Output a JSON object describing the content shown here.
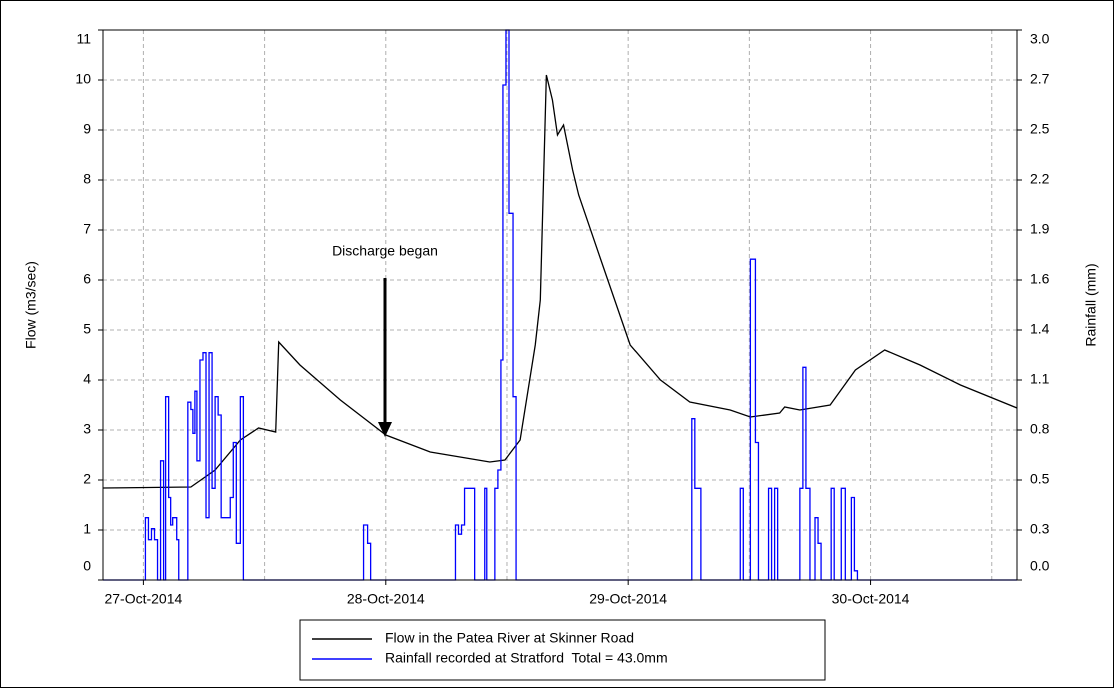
{
  "chart_data": {
    "type": "line",
    "y_label": "Flow (m3/sec)",
    "y2_label": "Rainfall (mm)",
    "annotation": "Discharge began",
    "xlim": [
      -4,
      86.5
    ],
    "xticks": [
      {
        "value": 0,
        "label": "27-Oct-2014"
      },
      {
        "value": 24,
        "label": "28-Oct-2014"
      },
      {
        "value": 48,
        "label": "29-Oct-2014"
      },
      {
        "value": 72,
        "label": "30-Oct-2014"
      }
    ],
    "x_gridlines": [
      0,
      12,
      24,
      36,
      48,
      60,
      72,
      84
    ],
    "ylim": [
      0,
      11
    ],
    "yticks": [
      0,
      1,
      2,
      3,
      4,
      5,
      6,
      7,
      8,
      9,
      10,
      11
    ],
    "y2lim": [
      0,
      3
    ],
    "y2ticks": [
      {
        "value": 0,
        "label": "0.0"
      },
      {
        "value": 0.2727,
        "label": "0.3"
      },
      {
        "value": 0.5455,
        "label": "0.5"
      },
      {
        "value": 0.8182,
        "label": "0.8"
      },
      {
        "value": 1.0909,
        "label": "1.1"
      },
      {
        "value": 1.3636,
        "label": "1.4"
      },
      {
        "value": 1.6364,
        "label": "1.6"
      },
      {
        "value": 1.9091,
        "label": "1.9"
      },
      {
        "value": 2.1818,
        "label": "2.2"
      },
      {
        "value": 2.4545,
        "label": "2.5"
      },
      {
        "value": 2.7273,
        "label": "2.7"
      },
      {
        "value": 3,
        "label": "3.0"
      }
    ],
    "grid": true,
    "legend": "bottom",
    "series": [
      {
        "name": "Flow in the Patea River at Skinner Road",
        "color": "#000000",
        "step": false,
        "x": [
          -4,
          4.7,
          7.1,
          9.6,
          11.4,
          13.1,
          13.4,
          15.5,
          19.5,
          24,
          28.4,
          34.3,
          35.8,
          37.3,
          38.8,
          39.3,
          39.9,
          40.5,
          41,
          41.6,
          42.5,
          43.1,
          45.3,
          48.2,
          51.2,
          54.1,
          58.1,
          60.1,
          63,
          63.5,
          65,
          68,
          70.5,
          73.4,
          76.9,
          80.9,
          86.5
        ],
        "values": [
          1.84,
          1.86,
          2.2,
          2.8,
          3.04,
          2.96,
          4.76,
          4.3,
          3.6,
          2.9,
          2.56,
          2.36,
          2.4,
          2.8,
          4.7,
          5.6,
          10.1,
          9.6,
          8.9,
          9.1,
          8.2,
          7.7,
          6.4,
          4.7,
          4.0,
          3.56,
          3.4,
          3.26,
          3.34,
          3.46,
          3.4,
          3.5,
          4.2,
          4.6,
          4.3,
          3.9,
          3.44
        ]
      },
      {
        "name": "Rainfall recorded at Stratford  Total = 43.0mm",
        "color": "#0000ff",
        "step": true,
        "axis": "y2",
        "x": [
          -4,
          0.2,
          0.5,
          0.8,
          1.1,
          1.4,
          1.7,
          2.0,
          2.2,
          2.5,
          2.7,
          2.9,
          3.3,
          3.5,
          4.4,
          4.7,
          4.9,
          5.1,
          5.3,
          5.6,
          5.9,
          6.2,
          6.5,
          6.8,
          7.1,
          7.4,
          7.7,
          8.6,
          8.9,
          9.2,
          9.6,
          9.9,
          21.8,
          22.2,
          22.5,
          30.9,
          31.2,
          31.5,
          31.8,
          32.8,
          33.8,
          34.0,
          34.8,
          35.1,
          35.4,
          35.6,
          35.9,
          36.2,
          36.6,
          36.9,
          54.3,
          54.6,
          55.2,
          59.1,
          59.4,
          60.1,
          60.6,
          60.9,
          61.9,
          62.2,
          62.5,
          62.8,
          65.0,
          65.3,
          65.6,
          66.0,
          66.5,
          66.8,
          67.1,
          68.1,
          68.4,
          69.1,
          69.5,
          70.1,
          70.4,
          70.7,
          86.5
        ],
        "values": [
          0,
          0.34,
          0.22,
          0.28,
          0.22,
          0,
          0.65,
          0,
          1.0,
          0.45,
          0.3,
          0.34,
          0.22,
          0,
          0.97,
          0.93,
          0.8,
          1.03,
          0.65,
          1.2,
          1.24,
          0.34,
          1.24,
          0.5,
          1.0,
          0.9,
          0.34,
          0.45,
          0.75,
          0.2,
          1.0,
          0,
          0.3,
          0.2,
          0,
          0.3,
          0.25,
          0.3,
          0.5,
          0,
          0.5,
          0,
          0.5,
          0.6,
          1.2,
          2.7,
          3.0,
          2.0,
          1.0,
          0,
          0.88,
          0.5,
          0,
          0.5,
          0,
          1.75,
          0.75,
          0,
          0.5,
          0,
          0.5,
          0,
          0.5,
          1.16,
          0.5,
          0,
          0.34,
          0.2,
          0,
          0.5,
          0,
          0.5,
          0,
          0.45,
          0.05,
          0,
          0
        ]
      }
    ]
  }
}
